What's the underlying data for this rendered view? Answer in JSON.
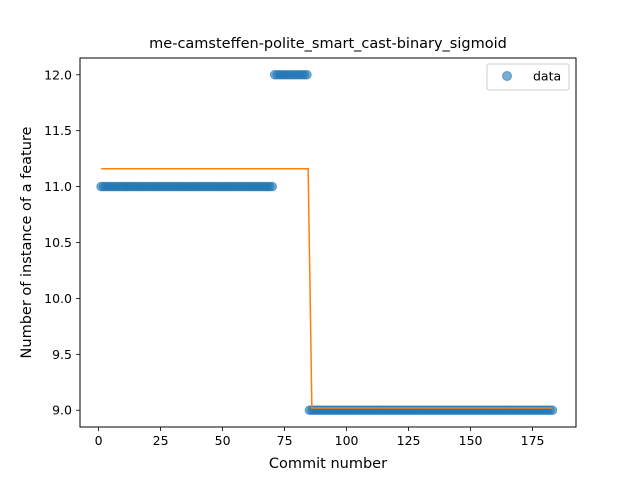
{
  "chart_data": {
    "type": "scatter",
    "title": "me-camsteffen-polite_smart_cast-binary_sigmoid",
    "xlabel": "Commit number",
    "ylabel": "Number of instance of a feature",
    "xlim": [
      -7.5,
      192.5
    ],
    "ylim": [
      8.85,
      12.15
    ],
    "xticks": [
      0,
      25,
      50,
      75,
      100,
      125,
      150,
      175
    ],
    "yticks": [
      9.0,
      9.5,
      10.0,
      10.5,
      11.0,
      11.5,
      12.0
    ],
    "ytick_labels": [
      "9.0",
      "9.5",
      "10.0",
      "10.5",
      "11.0",
      "11.5",
      "12.0"
    ],
    "grid": false,
    "legend_position": "upper right",
    "colors": {
      "data": "#1f77b4",
      "fit": "#ff7f0e"
    },
    "series": [
      {
        "name": "data",
        "kind": "points",
        "segments": [
          {
            "x_from": 1,
            "x_to": 70,
            "y": 11
          },
          {
            "x_from": 71,
            "x_to": 84,
            "y": 12
          },
          {
            "x_from": 85,
            "x_to": 183,
            "y": 9
          }
        ]
      },
      {
        "kind": "line",
        "points": [
          [
            1,
            11.16
          ],
          [
            84.5,
            11.16
          ],
          [
            86,
            9.02
          ],
          [
            183,
            9.02
          ]
        ]
      }
    ]
  }
}
